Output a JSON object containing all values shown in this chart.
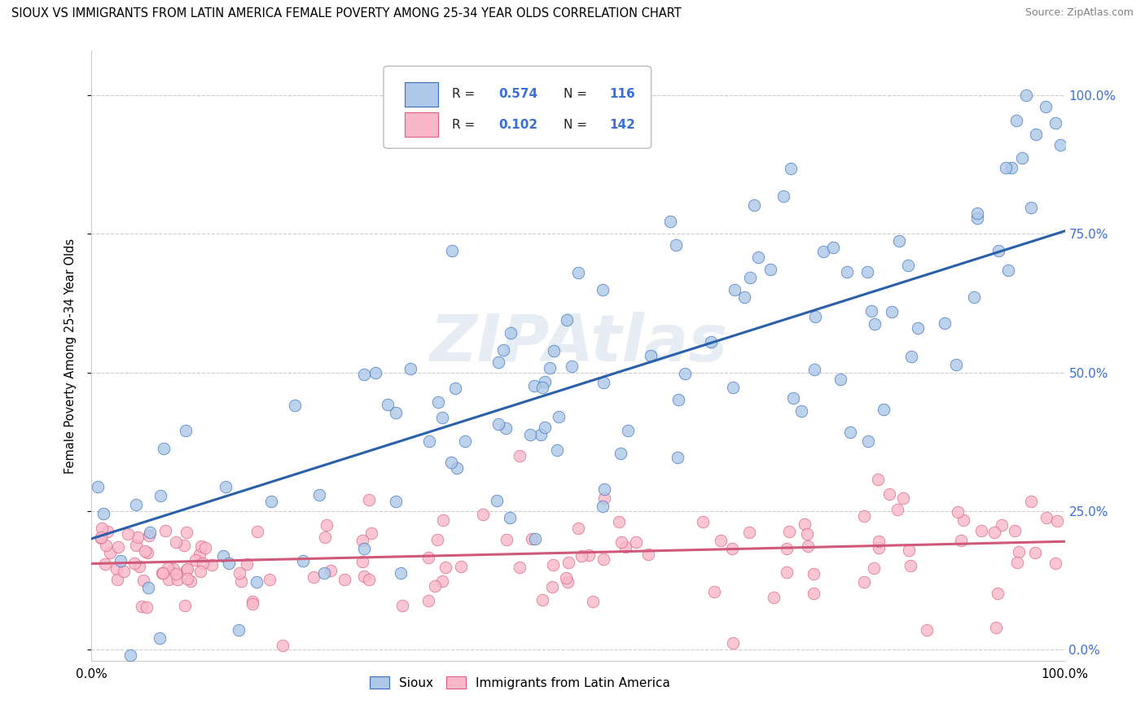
{
  "title": "SIOUX VS IMMIGRANTS FROM LATIN AMERICA FEMALE POVERTY AMONG 25-34 YEAR OLDS CORRELATION CHART",
  "source": "Source: ZipAtlas.com",
  "ylabel": "Female Poverty Among 25-34 Year Olds",
  "xlim": [
    0,
    1
  ],
  "ylim": [
    -0.02,
    1.08
  ],
  "xtick_labels": [
    "0.0%",
    "100.0%"
  ],
  "ytick_labels": [
    "0.0%",
    "25.0%",
    "50.0%",
    "75.0%",
    "100.0%"
  ],
  "ytick_positions": [
    0.0,
    0.25,
    0.5,
    0.75,
    1.0
  ],
  "watermark": "ZIPAtlas",
  "blue_r": "0.574",
  "blue_n": "116",
  "pink_r": "0.102",
  "pink_n": "142",
  "blue_fill": "#adc8e8",
  "blue_edge": "#3a6fba",
  "blue_line": "#2a5faa",
  "pink_fill": "#f9b8ca",
  "pink_edge": "#d96080",
  "pink_line": "#d05878",
  "r_n_color": "#3a6fd8",
  "background_color": "#ffffff",
  "grid_color": "#cccccc",
  "blue_line_y0": 0.2,
  "blue_line_y1": 0.755,
  "pink_line_y0": 0.155,
  "pink_line_y1": 0.195
}
